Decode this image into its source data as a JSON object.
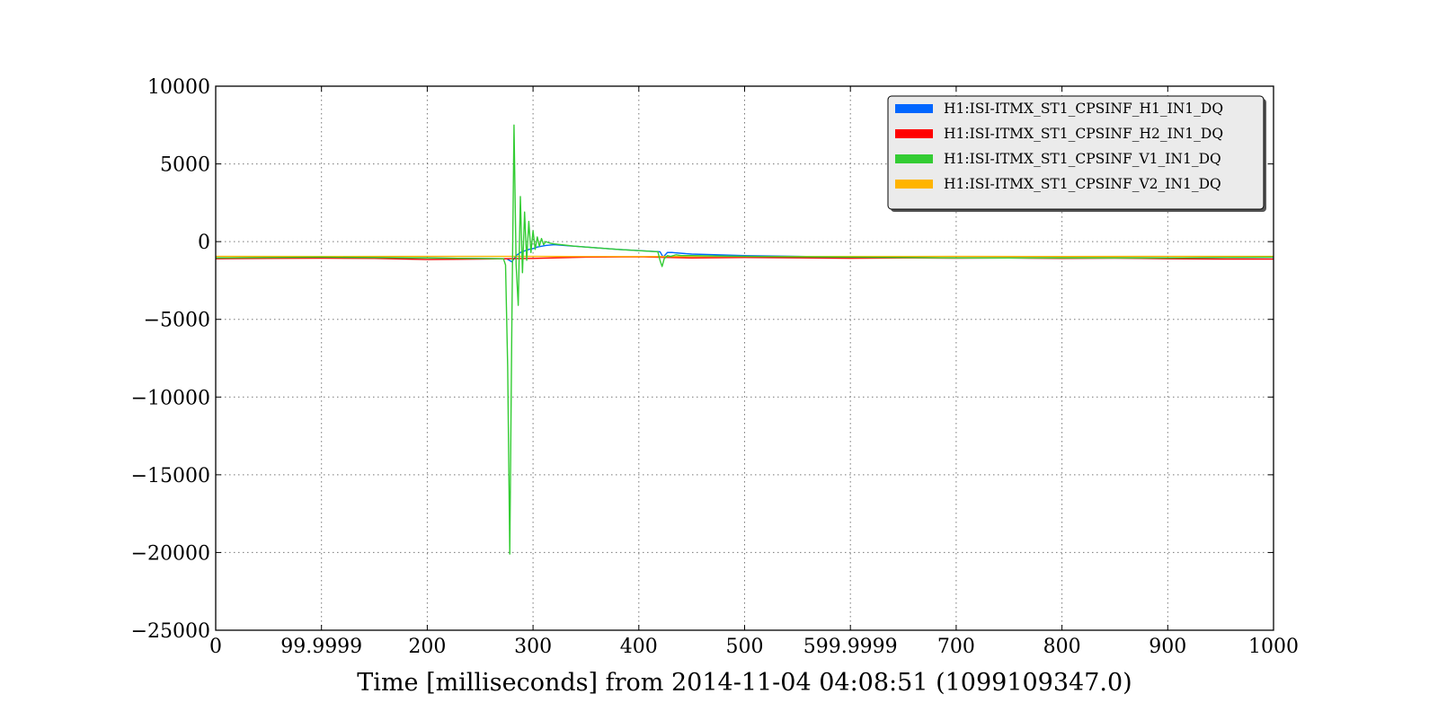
{
  "chart_data": {
    "type": "line",
    "title": "",
    "xlabel": "Time [milliseconds] from 2014-11-04 04:08:51 (1099109347.0)",
    "ylabel": "",
    "xlim": [
      0,
      1000
    ],
    "ylim": [
      -25000,
      10000
    ],
    "grid": true,
    "legend_position": "top-right",
    "x_ticks": [
      0,
      99.9999,
      200,
      300,
      400,
      500,
      599.9999,
      700,
      800,
      900,
      1000
    ],
    "x_tick_labels": [
      "0",
      "99.9999",
      "200",
      "300",
      "400",
      "500",
      "599.9999",
      "700",
      "800",
      "900",
      "1000"
    ],
    "y_ticks": [
      10000,
      5000,
      0,
      -5000,
      -10000,
      -15000,
      -20000,
      -25000
    ],
    "y_tick_labels": [
      "10000",
      "5000",
      "0",
      "−5000",
      "−10000",
      "−15000",
      "−20000",
      "−25000"
    ],
    "series": [
      {
        "name": "H1:ISI-ITMX_ST1_CPSINF_H1_IN1_DQ",
        "color": "#0066ff",
        "x": [
          0,
          100,
          200,
          275,
          280,
          284,
          288,
          292,
          296,
          300,
          304,
          308,
          312,
          320,
          340,
          380,
          420,
          423,
          427,
          432,
          440,
          450,
          500,
          600,
          700,
          800,
          900,
          1000
        ],
        "y": [
          -1050,
          -1000,
          -1050,
          -1100,
          -1300,
          -900,
          -700,
          -600,
          -500,
          -450,
          -350,
          -300,
          -250,
          -200,
          -300,
          -500,
          -650,
          -1000,
          -700,
          -700,
          -750,
          -800,
          -900,
          -1000,
          -1050,
          -1050,
          -1050,
          -1000
        ]
      },
      {
        "name": "H1:ISI-ITMX_ST1_CPSINF_H2_IN1_DQ",
        "color": "#ff0000",
        "x": [
          0,
          50,
          100,
          150,
          200,
          250,
          300,
          350,
          400,
          450,
          500,
          550,
          600,
          650,
          700,
          750,
          800,
          850,
          900,
          950,
          1000
        ],
        "y": [
          -1100,
          -1080,
          -1060,
          -1080,
          -1150,
          -1120,
          -1080,
          -1000,
          -980,
          -1050,
          -1020,
          -1040,
          -1070,
          -1050,
          -1060,
          -1050,
          -1080,
          -1060,
          -1100,
          -1120,
          -1120
        ]
      },
      {
        "name": "H1:ISI-ITMX_ST1_CPSINF_V1_IN1_DQ",
        "color": "#33cc33",
        "x": [
          0,
          100,
          200,
          272,
          274,
          276,
          278,
          280,
          282,
          284,
          286,
          288,
          290,
          292,
          294,
          296,
          298,
          300,
          302,
          304,
          306,
          308,
          310,
          312,
          316,
          320,
          340,
          380,
          418,
          420,
          422,
          424,
          427,
          430,
          435,
          440,
          450,
          500,
          600,
          700,
          800,
          900,
          1000
        ],
        "y": [
          -1050,
          -1000,
          -1050,
          -1100,
          -1500,
          -8000,
          -20100,
          -5000,
          7500,
          -1500,
          -4100,
          2900,
          -2000,
          1900,
          -1200,
          1300,
          -700,
          700,
          -500,
          300,
          -300,
          200,
          -200,
          0,
          -100,
          -150,
          -300,
          -500,
          -650,
          -1200,
          -1600,
          -1100,
          -900,
          -950,
          -850,
          -900,
          -900,
          -950,
          -1000,
          -1050,
          -1050,
          -1050,
          -1000
        ]
      },
      {
        "name": "H1:ISI-ITMX_ST1_CPSINF_V2_IN1_DQ",
        "color": "#ffb400",
        "x": [
          0,
          100,
          200,
          300,
          400,
          500,
          600,
          700,
          800,
          900,
          1000
        ],
        "y": [
          -950,
          -960,
          -950,
          -950,
          -960,
          -950,
          -960,
          -950,
          -960,
          -950,
          -950
        ]
      }
    ]
  }
}
